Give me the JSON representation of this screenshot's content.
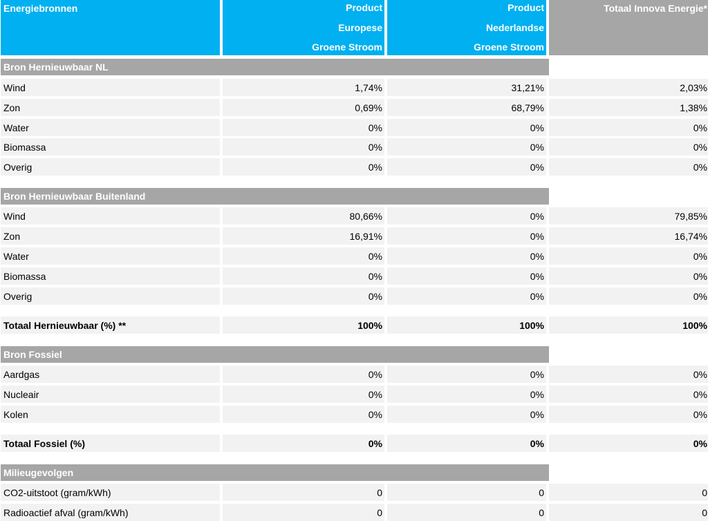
{
  "header": {
    "col1": "Energiebronnen",
    "col2_line1": "Product",
    "col2_line2": "Europese",
    "col2_line3": "Groene Stroom",
    "col3_line1": "Product",
    "col3_line2": "Nederlandse",
    "col3_line3": "Groene Stroom",
    "col4": "Totaal Innova Energie*"
  },
  "sections": {
    "nl": {
      "title": "Bron Hernieuwbaar NL",
      "rows": [
        {
          "label": "Wind",
          "eu": "1,74%",
          "nl": "31,21%",
          "total": "2,03%"
        },
        {
          "label": "Zon",
          "eu": "0,69%",
          "nl": "68,79%",
          "total": "1,38%"
        },
        {
          "label": "Water",
          "eu": "0%",
          "nl": "0%",
          "total": "0%"
        },
        {
          "label": "Biomassa",
          "eu": "0%",
          "nl": "0%",
          "total": "0%"
        },
        {
          "label": "Overig",
          "eu": "0%",
          "nl": "0%",
          "total": "0%"
        }
      ]
    },
    "buitenland": {
      "title": "Bron Hernieuwbaar Buitenland",
      "rows": [
        {
          "label": "Wind",
          "eu": "80,66%",
          "nl": "0%",
          "total": "79,85%"
        },
        {
          "label": "Zon",
          "eu": "16,91%",
          "nl": "0%",
          "total": "16,74%"
        },
        {
          "label": "Water",
          "eu": "0%",
          "nl": "0%",
          "total": "0%"
        },
        {
          "label": "Biomassa",
          "eu": "0%",
          "nl": "0%",
          "total": "0%"
        },
        {
          "label": "Overig",
          "eu": "0%",
          "nl": "0%",
          "total": "0%"
        }
      ]
    },
    "totaal_hernieuwbaar": {
      "label": "Totaal Hernieuwbaar (%) **",
      "eu": "100%",
      "nl": "100%",
      "total": "100%"
    },
    "fossiel": {
      "title": "Bron Fossiel",
      "rows": [
        {
          "label": "Aardgas",
          "eu": "0%",
          "nl": "0%",
          "total": "0%"
        },
        {
          "label": "Nucleair",
          "eu": "0%",
          "nl": "0%",
          "total": "0%"
        },
        {
          "label": "Kolen",
          "eu": "0%",
          "nl": "0%",
          "total": "0%"
        }
      ]
    },
    "totaal_fossiel": {
      "label": "Totaal Fossiel (%)",
      "eu": "0%",
      "nl": "0%",
      "total": "0%"
    },
    "milieu": {
      "title": "Milieugevolgen",
      "rows": [
        {
          "label": "CO2-uitstoot (gram/kWh)",
          "eu": "0",
          "nl": "0",
          "total": "0"
        },
        {
          "label": "Radioactief afval (gram/kWh)",
          "eu": "0",
          "nl": "0",
          "total": "0"
        }
      ]
    }
  },
  "colors": {
    "header_blue": "#00b0f0",
    "header_grey": "#a6a6a6",
    "row_bg": "#f2f2f2"
  }
}
